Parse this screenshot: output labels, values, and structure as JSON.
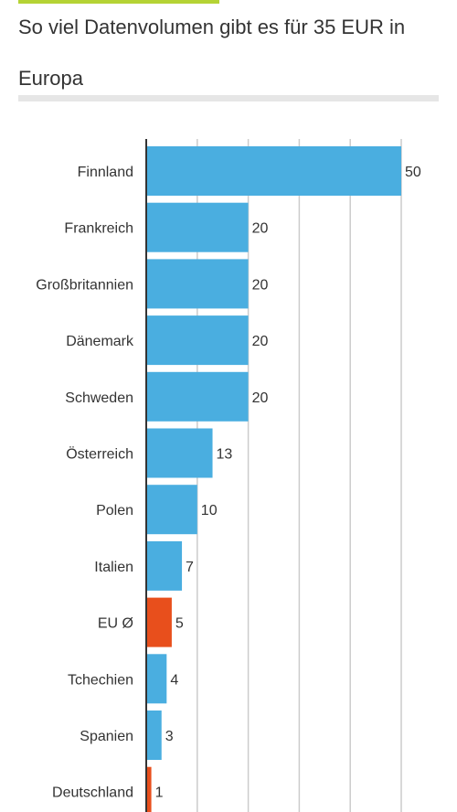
{
  "title": "So viel Datenvolumen gibt es für 35 EUR in Europa",
  "colors": {
    "bar": "#4aaee0",
    "highlight": "#e84f1c",
    "accent": "#b5d334",
    "grid": "#cccccc",
    "axis": "#333333"
  },
  "chart_data": {
    "type": "bar",
    "orientation": "horizontal",
    "categories": [
      "Finnland",
      "Frankreich",
      "Großbritannien",
      "Dänemark",
      "Schweden",
      "Österreich",
      "Polen",
      "Italien",
      "EU Ø",
      "Tchechien",
      "Spanien",
      "Deutschland"
    ],
    "values": [
      50,
      20,
      20,
      20,
      20,
      13,
      10,
      7,
      5,
      4,
      3,
      1
    ],
    "highlight": [
      "EU Ø",
      "Deutschland"
    ],
    "title": "So viel Datenvolumen gibt es für 35 EUR in Europa",
    "xlabel": "",
    "ylabel": "",
    "xlim": [
      0,
      50
    ],
    "grid": true,
    "legend": "none"
  }
}
